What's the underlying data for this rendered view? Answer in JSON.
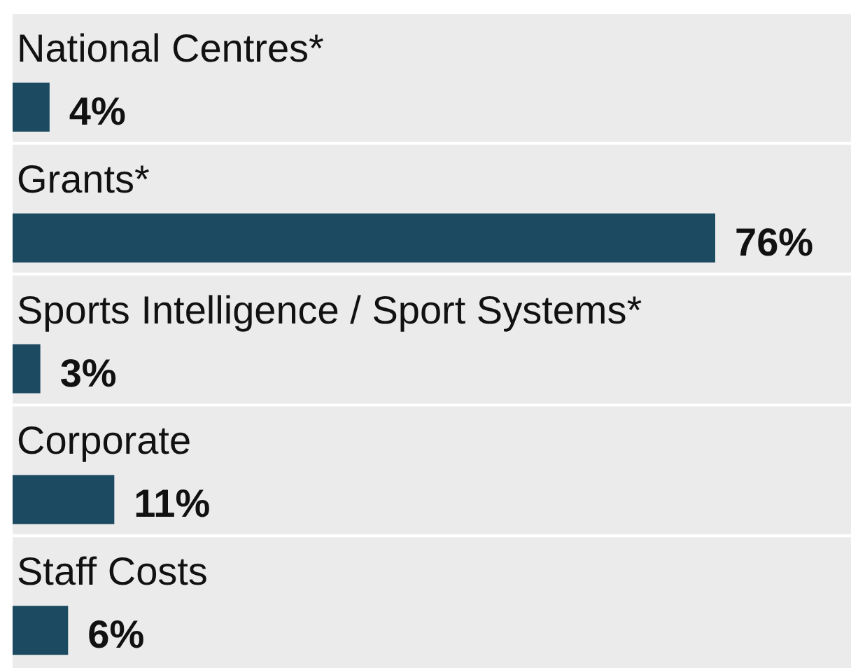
{
  "chart_data": {
    "type": "bar",
    "orientation": "horizontal",
    "categories": [
      "National Centres*",
      "Grants*",
      "Sports Intelligence / Sport Systems*",
      "Corporate",
      "Staff Costs"
    ],
    "values": [
      4,
      76,
      3,
      11,
      6
    ],
    "value_labels": [
      "4%",
      "76%",
      "3%",
      "11%",
      "6%"
    ],
    "color": "#1b4a61"
  }
}
